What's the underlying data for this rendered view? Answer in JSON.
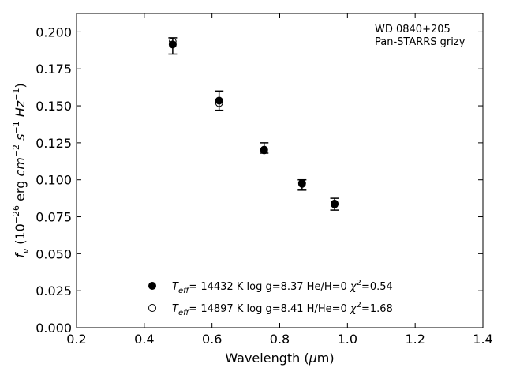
{
  "chart_data": {
    "type": "scatter",
    "xlabel": "Wavelength (μm)",
    "ylabel": "f_ν (10^-26 erg cm^-2 s^-1 Hz^-1)",
    "xlim": [
      0.2,
      1.4
    ],
    "ylim": [
      0.0,
      0.2125
    ],
    "xticks": [
      0.2,
      0.4,
      0.6,
      0.8,
      1.0,
      1.2,
      1.4
    ],
    "xtick_labels": [
      "0.2",
      "0.4",
      "0.6",
      "0.8",
      "1.0",
      "1.2",
      "1.4"
    ],
    "yticks": [
      0.0,
      0.025,
      0.05,
      0.075,
      0.1,
      0.125,
      0.15,
      0.175,
      0.2
    ],
    "ytick_labels": [
      "0.000",
      "0.025",
      "0.050",
      "0.075",
      "0.100",
      "0.125",
      "0.150",
      "0.175",
      "0.200"
    ],
    "grid": false,
    "legend_position": "lower-center",
    "annotation": [
      "WD 0840+205",
      "Pan-STARRS grizy"
    ],
    "observed": {
      "x": [
        0.484,
        0.621,
        0.754,
        0.866,
        0.962
      ],
      "y": [
        0.1905,
        0.1535,
        0.1215,
        0.0965,
        0.0835
      ],
      "yerr": [
        0.0055,
        0.0065,
        0.0035,
        0.0035,
        0.004
      ]
    },
    "series": [
      {
        "legend": {
          "pre": "",
          "sub": "eff",
          "mid": "= 14432 K  log g=8.37  He/H=0  χ",
          "sup": "2",
          "post": "=0.54"
        },
        "marker": "filled-circle",
        "x": [
          0.484,
          0.621,
          0.754,
          0.866,
          0.962
        ],
        "y": [
          0.1915,
          0.1535,
          0.1203,
          0.0977,
          0.0839
        ]
      },
      {
        "legend": {
          "pre": "",
          "sub": "eff",
          "mid": "= 14897 K  log g=8.41  H/He=0  χ",
          "sup": "2",
          "post": "=1.68"
        },
        "marker": "open-circle",
        "x": [
          0.484,
          0.621,
          0.754,
          0.866,
          0.962
        ],
        "y": [
          0.1935,
          0.1518,
          0.1198,
          0.0972,
          0.0833
        ]
      }
    ]
  }
}
